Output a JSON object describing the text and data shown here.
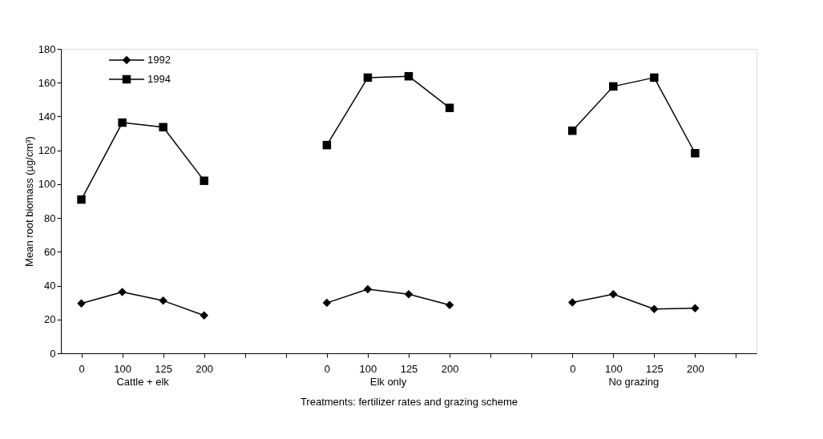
{
  "chart_data": {
    "type": "line",
    "xlabel": "Treatments: fertilizer rates and grazing scheme",
    "ylabel": "Mean root biomass (µg/cm³)",
    "categories": [
      "0",
      "100",
      "125",
      "200",
      null,
      null,
      "0",
      "100",
      "125",
      "200",
      null,
      null,
      "0",
      "100",
      "125",
      "200",
      null
    ],
    "series": [
      {
        "name": "1992",
        "color": "#000000",
        "marker": "diamond",
        "values": [
          29.5,
          36.2,
          31.1,
          22.4,
          null,
          null,
          29.8,
          37.9,
          34.9,
          28.5,
          null,
          null,
          30.1,
          34.9,
          26.2,
          26.6,
          null
        ]
      },
      {
        "name": "1994",
        "color": "#000000",
        "marker": "square",
        "values": [
          90.9,
          136.4,
          133.7,
          102,
          null,
          null,
          123.1,
          163.0,
          163.8,
          145.1,
          null,
          null,
          131.6,
          157.8,
          163.0,
          118.3,
          null
        ]
      }
    ],
    "annotations": [
      "Cattle + elk",
      "Elk only",
      "No grazing"
    ],
    "ylim": [
      0,
      180
    ],
    "yticks": [
      0,
      20,
      40,
      60,
      80,
      100,
      120,
      140,
      160,
      180
    ],
    "grid": false,
    "legend": "top left",
    "line_style": "solid"
  }
}
